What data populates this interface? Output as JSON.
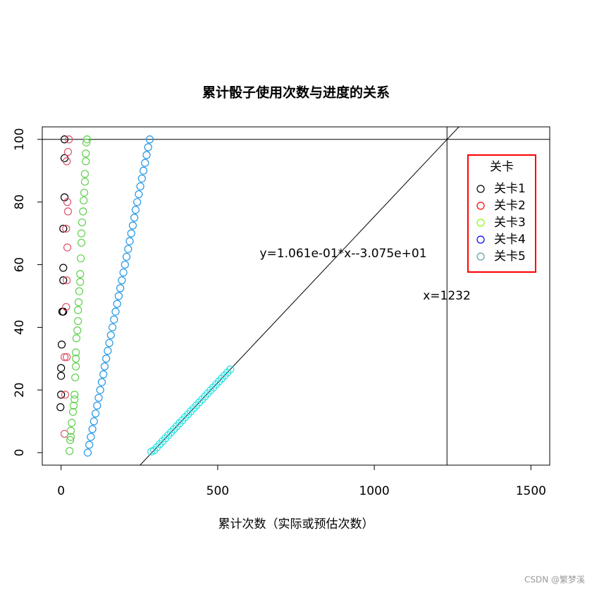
{
  "chart_data": {
    "type": "scatter",
    "title": "累计骰子使用次数与进度的关系",
    "xlabel": "累计次数（实际或预估次数）",
    "xlim": [
      -60,
      1560
    ],
    "ylim": [
      -4,
      104
    ],
    "xticks": [
      0,
      500,
      1000,
      1500
    ],
    "yticks": [
      0,
      20,
      40,
      60,
      80,
      100
    ],
    "legend_title": "关卡",
    "legend_position": "top-right",
    "legend_border": "#ff0000",
    "abline": {
      "slope": 0.1061,
      "intercept": -30.75
    },
    "hline": 100,
    "vline": 1232,
    "annotations": [
      "y=1.061e-01*x--3.075e+01",
      "x=1232"
    ],
    "watermark": "CSDN @繁梦溪",
    "series": [
      {
        "name": "关卡1",
        "color": "#000000",
        "legend_color": "#000000",
        "x": [
          11,
          11,
          11,
          7,
          7,
          7,
          4,
          7,
          2,
          0,
          0,
          0,
          -2
        ],
        "y": [
          100,
          94,
          81.5,
          71.5,
          59,
          55,
          45,
          45,
          34.5,
          27,
          24.5,
          18.5,
          14.5
        ]
      },
      {
        "name": "关卡2",
        "color": "#DF536B",
        "legend_color": "#ff0000",
        "x": [
          25,
          22,
          18,
          20,
          22,
          16,
          20,
          18,
          16,
          11,
          18,
          13,
          11
        ],
        "y": [
          100,
          96,
          93,
          80,
          77,
          71.5,
          65.5,
          55,
          46.5,
          30.5,
          30.5,
          18.5,
          6
        ]
      },
      {
        "name": "关卡3",
        "color": "#61D04F",
        "legend_color": "#7fff00",
        "x": [
          27,
          29,
          31,
          31,
          34,
          38,
          40,
          43,
          43,
          45,
          47,
          47,
          47,
          49,
          52,
          54,
          54,
          56,
          58,
          61,
          61,
          63,
          65,
          65,
          67,
          70,
          72,
          74,
          76,
          76,
          79,
          79,
          81,
          83
        ],
        "y": [
          0.5,
          4,
          5,
          7,
          9.5,
          13,
          15,
          17,
          18.5,
          24,
          27.5,
          30,
          32,
          36.5,
          39,
          42,
          45.5,
          48,
          51.5,
          54.5,
          57,
          62,
          67,
          70,
          73.5,
          77,
          80.5,
          83,
          86.5,
          89,
          93,
          95.5,
          99,
          100
        ]
      },
      {
        "name": "关卡4",
        "color": "#2297E6",
        "legend_color": "#0000ff",
        "x": [
          85,
          90,
          95,
          100,
          105,
          110,
          115,
          120,
          125,
          130,
          135,
          139,
          144,
          149,
          154,
          159,
          164,
          169,
          174,
          179,
          184,
          189,
          194,
          199,
          204,
          209,
          214,
          219,
          224,
          229,
          234,
          238,
          243,
          248,
          253,
          258,
          263,
          268,
          273,
          278,
          283
        ],
        "y": [
          0,
          2.5,
          5,
          7.5,
          10,
          12.5,
          15,
          17.5,
          20,
          22.5,
          25,
          27.5,
          30,
          32.5,
          35,
          37.5,
          40,
          42.5,
          45,
          47.5,
          50,
          52.5,
          55,
          57.5,
          60,
          62.5,
          65,
          67.5,
          70,
          72.5,
          75,
          77.5,
          80,
          82.5,
          85,
          87.5,
          90,
          92.5,
          95,
          97.5,
          100
        ]
      },
      {
        "name": "关卡5",
        "color": "#28E2E5",
        "legend_color": "#5f9ea0",
        "x": [
          288,
          297,
          306,
          315,
          324,
          333,
          342,
          351,
          360,
          369,
          378,
          387,
          396,
          405,
          414,
          423,
          432,
          441,
          450,
          459,
          468,
          477,
          486,
          495,
          504,
          513,
          522,
          531,
          540
        ],
        "y": [
          0.31,
          0.76,
          1.72,
          2.67,
          3.63,
          4.58,
          5.54,
          6.49,
          7.45,
          8.4,
          9.36,
          10.31,
          11.27,
          12.22,
          13.18,
          14.13,
          15.09,
          16.04,
          17,
          17.95,
          18.9,
          19.86,
          20.81,
          21.77,
          22.72,
          23.68,
          24.63,
          25.59,
          26.54
        ]
      }
    ]
  }
}
